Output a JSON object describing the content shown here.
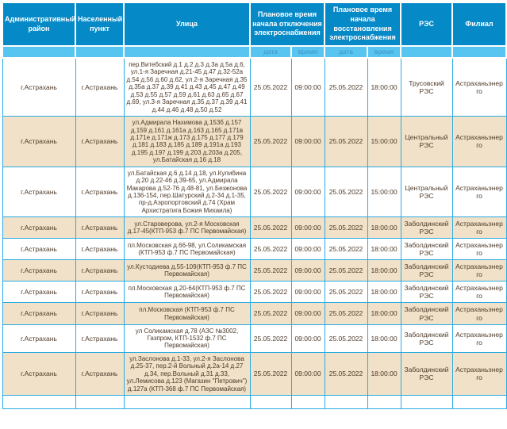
{
  "table": {
    "columns": {
      "district": "Административный\nрайон",
      "settlement": "Населенный\nпункт",
      "street": "Улица",
      "outage_group": "Плановое время начала отключения электроснабжения",
      "restore_group": "Плановое время начала восстановления электроснабжения",
      "res": "РЭС",
      "branch": "Филиал",
      "sub_date1": "дата",
      "sub_time1": "время",
      "sub_date2": "дата",
      "sub_time2": "время"
    },
    "rows": [
      {
        "district": "г.Астрахань",
        "settlement": "г.Астрахань",
        "street": "пер.Витебский д.1 д.2 д.3 д.3а д.5а д.6, ул.1-я Заречная д.21-45 д.47 д.32-52а д.54 д.56 д.60 д.62, ул.2-я Заречная д.35 д.35а д.37 д.39 д.41 д.43 д.45 д.47 д.49 д.53 д.55 д.57 д.59 д.61 д.63 д.65 д.67 д.69, ул.3-я Заречная д.35 д.37 д.39 д.41 д.44 д.46 д.48 д.50 д.52",
        "off_date": "25.05.2022",
        "off_time": "09:00:00",
        "on_date": "25.05.2022",
        "on_time": "18:00:00",
        "res": "Трусовский РЭС",
        "branch": "Астраханьэнерго"
      },
      {
        "district": "г.Астрахань",
        "settlement": "г.Астрахань",
        "street": "ул.Адмирала Нахимова д.153б д.157 д.159 д.161 д.161а д.163 д.165 д.171в д.171е д.171ж д.173 д.175 д.177 д.179 д.181 д.183 д.185 д.189 д.191а д.193 д.195 д.197 д.199 д.203 д.203а д.205, ул.Батайская д.16 д.18",
        "off_date": "25.05.2022",
        "off_time": "09:00:00",
        "on_date": "25.05.2022",
        "on_time": "15:00:00",
        "res": "Центральный РЭС",
        "branch": "Астраханьэнерго"
      },
      {
        "district": "г.Астрахань",
        "settlement": "г.Астрахань",
        "street": "ул.Батайская д.6 д.14 д.18, ул.Кулибина д.20 д.22-46 д.39-65, ул.Адмирала Макарова д.52-76 д.48-81, ул.Безжонова д.136-154, пер.Шатурский д.2-34 д.1-35, пр-д.Аэропортовский д.74 (Храм Архистратига Божия Михаила)",
        "off_date": "25.05.2022",
        "off_time": "09:00:00",
        "on_date": "25.05.2022",
        "on_time": "15:00:00",
        "res": "Центральный РЭС",
        "branch": "Астраханьэнерго"
      },
      {
        "district": "г.Астрахань",
        "settlement": "г.Астрахань",
        "street": "ул.Староверова, ул.2-я Московская д.17-45(КТП-953 ф.7 ПС Первомайская)",
        "off_date": "25.05.2022",
        "off_time": "09:00:00",
        "on_date": "25.05.2022",
        "on_time": "18:00:00",
        "res": "Заболдинский РЭС",
        "branch": "Астраханьэнерго"
      },
      {
        "district": "г.Астрахань",
        "settlement": "г.Астрахань",
        "street": "пл.Московская д.66-98, ул.Соликамская (КТП-953 ф.7 ПС Первомайская)",
        "off_date": "25.05.2022",
        "off_time": "09:00:00",
        "on_date": "25.05.2022",
        "on_time": "18:00:00",
        "res": "Заболдинский РЭС",
        "branch": "Астраханьэнерго"
      },
      {
        "district": "г.Астрахань",
        "settlement": "г.Астрахань",
        "street": "ул.Кустодиева д.55-109(КТП-953 ф.7 ПС Первомайская)",
        "off_date": "25.05.2022",
        "off_time": "09:00:00",
        "on_date": "25.05.2022",
        "on_time": "18:00:00",
        "res": "Заболдинский РЭС",
        "branch": "Астраханьэнерго"
      },
      {
        "district": "г.Астрахань",
        "settlement": "г.Астрахань",
        "street": "пл.Московская д.20-64(КТП-953 ф.7 ПС Первомайская)",
        "off_date": "25.05.2022",
        "off_time": "09:00:00",
        "on_date": "25.05.2022",
        "on_time": "18:00:00",
        "res": "Заболдинский РЭС",
        "branch": "Астраханьэнерго"
      },
      {
        "district": "г.Астрахань",
        "settlement": "г.Астрахань",
        "street": "пл.Московская (КТП-953 ф.7 ПС Первомайская)",
        "off_date": "25.05.2022",
        "off_time": "09:00:00",
        "on_date": "25.05.2022",
        "on_time": "18:00:00",
        "res": "Заболдинский РЭС",
        "branch": "Астраханьэнерго"
      },
      {
        "district": "г.Астрахань",
        "settlement": "г.Астрахань",
        "street": "ул Соликамская д.78 (АЗС №3002, Газпром, КТП-1532 ф.7 ПС Первомайская)",
        "off_date": "25.05.2022",
        "off_time": "09:00:00",
        "on_date": "25.05.2022",
        "on_time": "18:00:00",
        "res": "Заболдинский РЭС",
        "branch": "Астраханьэнерго"
      },
      {
        "district": "г.Астрахань",
        "settlement": "г.Астрахань",
        "street": "ул.Заслонова д.1-33, ул.2-я Заслонова д.25-37, пер.2-й Вольный д.2а-14 д.27 д.34, пер.Вольный д.31 д.33, ул.Лемисова д.123 (Магазин \"Петрович\") д.127а (КТП-368 ф.7 ПС Первомайская)",
        "off_date": "25.05.2022",
        "off_time": "09:00:00",
        "on_date": "25.05.2022",
        "on_time": "18:00:00",
        "res": "Заболдинский РЭС",
        "branch": "Астраханьэнерго"
      }
    ],
    "colors": {
      "header_bg": "#0689c7",
      "subheader_bg": "#58c5f1",
      "cell_border": "#2aabe2",
      "alt_row_bg": "#f0e1c8",
      "text": "#4e3a29",
      "header_text": "#ffffff",
      "subheader_text": "#3d93c4"
    }
  }
}
